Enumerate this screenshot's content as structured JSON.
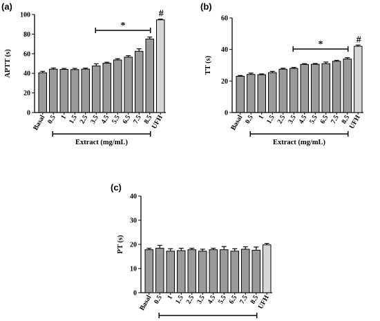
{
  "colors": {
    "bar": "#9a9a9a",
    "bar_ufh": "#d7d7d7",
    "stroke": "#000000"
  },
  "chart_data": [
    {
      "panel_label": "(a)",
      "type": "bar",
      "ylabel": "APTT (s)",
      "ylim": [
        0,
        100
      ],
      "yticks": [
        0,
        20,
        40,
        60,
        80,
        100
      ],
      "categories": [
        "Basal",
        "0.5",
        "1",
        "1.5",
        "2.5",
        "3.5",
        "4.5",
        "5.5",
        "6.5",
        "7.5",
        "8.5",
        "UFH"
      ],
      "values": [
        40.5,
        44.2,
        44.0,
        43.8,
        44.3,
        47.5,
        50.3,
        53.6,
        56.5,
        62.5,
        75.0,
        94.5
      ],
      "errors": [
        1.5,
        1.2,
        1.0,
        1.2,
        1.0,
        2.2,
        1.0,
        1.3,
        1.5,
        2.5,
        2.0,
        0.8
      ],
      "xgroup_label": "Extract (mg/mL)",
      "bracket_label": "*",
      "ufh_label": "#"
    },
    {
      "panel_label": "(b)",
      "type": "bar",
      "ylabel": "TT (s)",
      "ylim": [
        0,
        60
      ],
      "yticks": [
        0,
        20,
        40,
        60
      ],
      "categories": [
        "Basal",
        "0.5",
        "1",
        "1.5",
        "2.5",
        "3.5",
        "4.5",
        "5.5",
        "6.5",
        "7.5",
        "8.5",
        "UFH"
      ],
      "values": [
        23.0,
        24.2,
        24.0,
        25.3,
        27.5,
        28.0,
        30.5,
        30.6,
        31.0,
        32.5,
        34.0,
        42.0
      ],
      "errors": [
        0.5,
        0.8,
        0.5,
        0.8,
        0.6,
        0.6,
        0.5,
        0.5,
        1.0,
        0.6,
        0.8,
        0.8
      ],
      "xgroup_label": "Extract (mg/mL)",
      "bracket_label": "*",
      "ufh_label": "#"
    },
    {
      "panel_label": "(c)",
      "type": "bar",
      "ylabel": "PT (s)",
      "ylim": [
        0,
        40
      ],
      "yticks": [
        0,
        10,
        20,
        30,
        40
      ],
      "categories": [
        "Basal",
        "0.5",
        "1",
        "1.5",
        "2.5",
        "3.5",
        "4.5",
        "5.5",
        "6.5",
        "7.5",
        "8.5",
        "UFH"
      ],
      "values": [
        17.8,
        18.4,
        17.2,
        17.4,
        17.8,
        17.2,
        17.8,
        17.8,
        17.2,
        18.0,
        17.6,
        19.8
      ],
      "errors": [
        0.6,
        1.2,
        1.0,
        1.0,
        0.6,
        0.8,
        0.6,
        1.3,
        1.0,
        1.0,
        1.3,
        0.6
      ],
      "xgroup_label": "",
      "bracket_label": "",
      "ufh_label": ""
    }
  ]
}
